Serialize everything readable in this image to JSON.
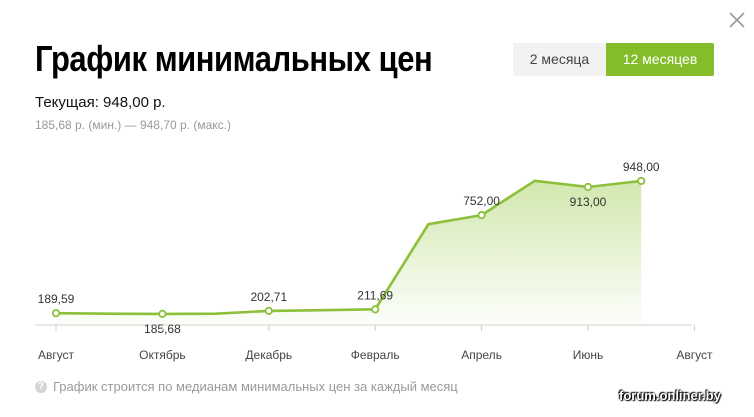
{
  "header": {
    "title": "График минимальных цен",
    "close_icon": "close-icon"
  },
  "period_toggle": {
    "options": [
      "2 месяца",
      "12 месяцев"
    ],
    "selected": "12 месяцев"
  },
  "summary": {
    "current": "Текущая: 948,00 р.",
    "range": "185,68 р. (мин.) — 948,70 р. (макс.)"
  },
  "footer": {
    "note": "График строится по медианам минимальных цен за каждый месяц",
    "help_icon": "question-icon"
  },
  "watermark": "forum.onliner.by",
  "colors": {
    "accent": "#84bd29",
    "line": "#8cc03b",
    "fill_top": "#cfe6aa",
    "axis": "#d0d0d0"
  },
  "chart_data": {
    "type": "area",
    "x_ticks": [
      "Август",
      "Октябрь",
      "Декабрь",
      "Февраль",
      "Апрель",
      "Июнь",
      "Август"
    ],
    "points": [
      {
        "x": "Август",
        "y": 189.59,
        "marker": true,
        "label": "189,59",
        "label_pos": "above"
      },
      {
        "x": "Сентябрь",
        "y": 186.5,
        "marker": false
      },
      {
        "x": "Октябрь",
        "y": 185.68,
        "marker": true,
        "label": "185,68",
        "label_pos": "below"
      },
      {
        "x": "Ноябрь",
        "y": 186.5,
        "marker": false
      },
      {
        "x": "Декабрь",
        "y": 202.71,
        "marker": true,
        "label": "202,71",
        "label_pos": "above"
      },
      {
        "x": "Январь",
        "y": 207,
        "marker": false
      },
      {
        "x": "Февраль",
        "y": 211.69,
        "marker": true,
        "label": "211,69",
        "label_pos": "above"
      },
      {
        "x": "Март",
        "y": 700,
        "marker": false
      },
      {
        "x": "Апрель",
        "y": 752.0,
        "marker": true,
        "label": "752,00",
        "label_pos": "above"
      },
      {
        "x": "Май",
        "y": 948.7,
        "marker": false
      },
      {
        "x": "Июнь",
        "y": 913.0,
        "marker": true,
        "label": "913,00",
        "label_pos": "below"
      },
      {
        "x": "Июль",
        "y": 948.0,
        "marker": true,
        "label": "948,00",
        "label_pos": "above"
      }
    ],
    "ylim": [
      0,
      948.7
    ],
    "grid": false,
    "legend": "none"
  }
}
